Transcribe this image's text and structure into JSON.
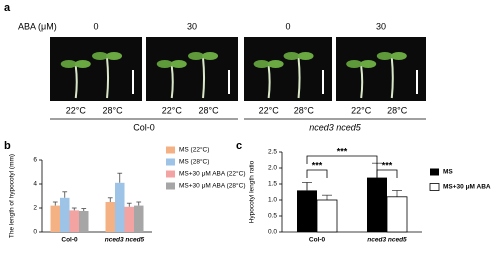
{
  "panel_a": {
    "label": "a",
    "treatment_label": "ABA (μM)",
    "doses": [
      "0",
      "30",
      "0",
      "30"
    ],
    "temperatures": [
      "22°C",
      "28°C",
      "22°C",
      "28°C",
      "22°C",
      "28°C",
      "22°C",
      "28°C"
    ],
    "genotypes": [
      "Col-0",
      "nced3 nced5"
    ]
  },
  "chart_data": [
    {
      "type": "bar",
      "panel_label": "b",
      "y_label": "The length of hypocotyl (mm)",
      "categories": [
        "Col-0",
        "nced3 nced5"
      ],
      "series": [
        {
          "name": "MS (22°C)",
          "color": "#f4b183",
          "values": [
            2.2,
            2.5
          ],
          "errors": [
            0.3,
            0.35
          ]
        },
        {
          "name": "MS (28°C)",
          "color": "#9dc3e6",
          "values": [
            2.85,
            4.1
          ],
          "errors": [
            0.5,
            0.8
          ]
        },
        {
          "name": "MS+30 μM ABA (22°C)",
          "color": "#f4a3a3",
          "values": [
            1.8,
            2.1
          ],
          "errors": [
            0.2,
            0.3
          ]
        },
        {
          "name": "MS+30 μM ABA (28°C)",
          "color": "#a6a6a6",
          "values": [
            1.75,
            2.2
          ],
          "errors": [
            0.2,
            0.3
          ]
        }
      ],
      "ylim": [
        0,
        6
      ],
      "yticks": [
        0,
        2,
        4,
        6
      ]
    },
    {
      "type": "bar",
      "panel_label": "c",
      "y_label": "Hypocotyl length ratio",
      "categories": [
        "Col-0",
        "nced3 nced5"
      ],
      "series": [
        {
          "name": "MS",
          "color": "#000000",
          "values": [
            1.3,
            1.7
          ],
          "errors": [
            0.25,
            0.45
          ]
        },
        {
          "name": "MS+30 μM ABA",
          "color": "#ffffff",
          "values": [
            1.0,
            1.1
          ],
          "errors": [
            0.15,
            0.2
          ]
        }
      ],
      "ylim": [
        0,
        2.5
      ],
      "yticks": [
        {
          "value": 0,
          "label": "0.0"
        },
        {
          "value": 0.5,
          "label": "0.5"
        },
        {
          "value": 1,
          "label": "1.0"
        },
        {
          "value": 1.5,
          "label": "1.5"
        },
        {
          "value": 2,
          "label": "2.0"
        },
        {
          "value": 2.5,
          "label": "2.5"
        }
      ],
      "annotations": [
        "***",
        "***",
        "***"
      ]
    }
  ]
}
